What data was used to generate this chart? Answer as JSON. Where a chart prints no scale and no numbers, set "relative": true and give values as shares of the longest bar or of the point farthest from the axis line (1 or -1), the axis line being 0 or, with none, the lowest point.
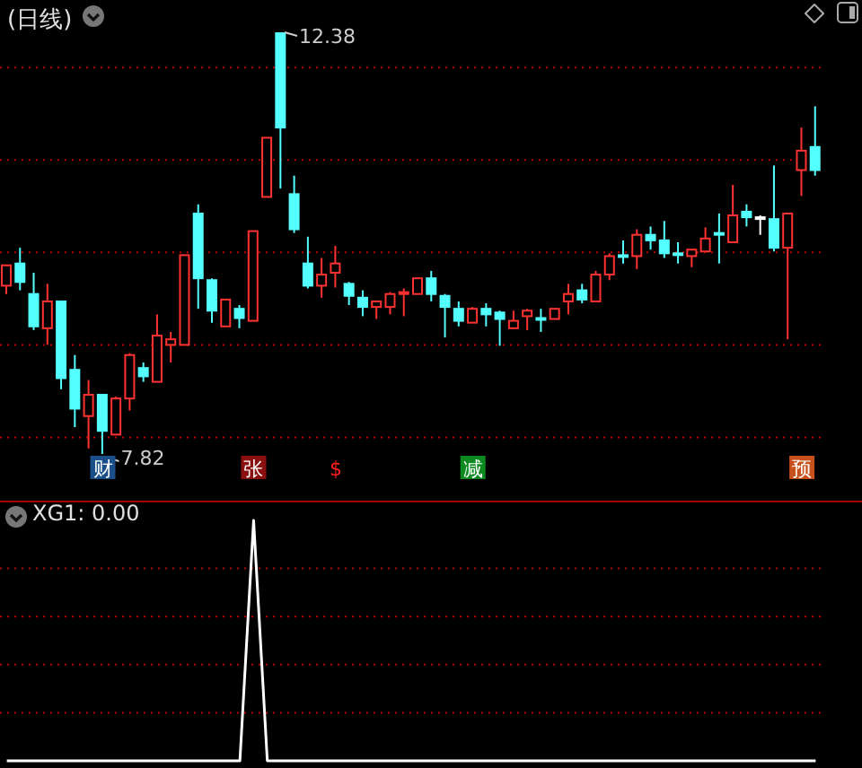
{
  "chart_data": [
    {
      "type": "candlestick",
      "title": "(日线)",
      "categories": [
        null,
        null,
        null,
        null,
        null,
        null,
        null,
        null,
        null,
        null,
        null,
        null,
        null,
        null,
        null,
        null,
        null,
        null,
        null,
        null,
        null,
        null,
        null,
        null,
        null,
        null,
        null,
        null,
        null,
        null,
        null,
        null,
        null,
        null,
        null,
        null,
        null,
        null,
        null,
        null,
        null,
        null,
        null,
        null,
        null,
        null,
        null,
        null,
        null,
        null,
        null,
        null,
        null,
        null,
        null,
        null,
        null,
        null,
        null,
        null
      ],
      "ohlc": [
        [
          9.64,
          9.86,
          9.55,
          9.86
        ],
        [
          9.88,
          10.05,
          9.59,
          9.68
        ],
        [
          9.55,
          9.78,
          9.16,
          9.2
        ],
        [
          9.18,
          9.66,
          9.0,
          9.47
        ],
        [
          9.47,
          9.47,
          8.52,
          8.64
        ],
        [
          8.73,
          8.89,
          8.11,
          8.31
        ],
        [
          8.23,
          8.62,
          7.88,
          8.46
        ],
        [
          8.46,
          8.46,
          7.82,
          8.07
        ],
        [
          8.03,
          8.44,
          8.03,
          8.42
        ],
        [
          8.42,
          8.91,
          8.29,
          8.89
        ],
        [
          8.75,
          8.81,
          8.6,
          8.66
        ],
        [
          8.6,
          9.33,
          8.6,
          9.1
        ],
        [
          9.0,
          9.14,
          8.81,
          9.06
        ],
        [
          9.0,
          9.97,
          9.0,
          9.97
        ],
        [
          10.42,
          10.52,
          9.39,
          9.72
        ],
        [
          9.7,
          9.72,
          9.24,
          9.37
        ],
        [
          9.2,
          9.49,
          9.2,
          9.49
        ],
        [
          9.39,
          9.43,
          9.18,
          9.29
        ],
        [
          9.26,
          10.23,
          9.26,
          10.23
        ],
        [
          10.6,
          11.24,
          10.6,
          11.24
        ],
        [
          12.38,
          12.38,
          10.69,
          11.35
        ],
        [
          10.63,
          10.83,
          10.21,
          10.25
        ],
        [
          9.88,
          10.17,
          9.61,
          9.64
        ],
        [
          9.64,
          9.94,
          9.51,
          9.76
        ],
        [
          9.78,
          10.07,
          9.62,
          9.88
        ],
        [
          9.66,
          9.68,
          9.43,
          9.53
        ],
        [
          9.51,
          9.59,
          9.31,
          9.41
        ],
        [
          9.41,
          9.47,
          9.28,
          9.47
        ],
        [
          9.41,
          9.57,
          9.33,
          9.55
        ],
        [
          9.55,
          9.61,
          9.31,
          9.57
        ],
        [
          9.55,
          9.72,
          9.55,
          9.72
        ],
        [
          9.72,
          9.8,
          9.47,
          9.55
        ],
        [
          9.53,
          9.55,
          9.08,
          9.41
        ],
        [
          9.39,
          9.47,
          9.2,
          9.26
        ],
        [
          9.24,
          9.41,
          9.24,
          9.39
        ],
        [
          9.39,
          9.45,
          9.2,
          9.33
        ],
        [
          9.35,
          9.37,
          8.99,
          9.28
        ],
        [
          9.18,
          9.37,
          9.18,
          9.26
        ],
        [
          9.31,
          9.39,
          9.16,
          9.37
        ],
        [
          9.29,
          9.39,
          9.14,
          9.29
        ],
        [
          9.28,
          9.39,
          9.28,
          9.39
        ],
        [
          9.47,
          9.66,
          9.33,
          9.55
        ],
        [
          9.59,
          9.66,
          9.45,
          9.49
        ],
        [
          9.47,
          9.8,
          9.47,
          9.76
        ],
        [
          9.76,
          9.99,
          9.7,
          9.96
        ],
        [
          9.97,
          10.13,
          9.88,
          9.97
        ],
        [
          9.96,
          10.25,
          9.82,
          10.19
        ],
        [
          10.19,
          10.28,
          10.03,
          10.13
        ],
        [
          10.13,
          10.34,
          9.94,
          9.99
        ],
        [
          9.99,
          10.11,
          9.88,
          9.99
        ],
        [
          9.96,
          10.03,
          9.84,
          10.03
        ],
        [
          10.01,
          10.27,
          10.01,
          10.15
        ],
        [
          10.21,
          10.42,
          9.88,
          10.21
        ],
        [
          10.11,
          10.73,
          10.11,
          10.4
        ],
        [
          10.44,
          10.52,
          10.28,
          10.38
        ],
        [
          10.38,
          10.4,
          10.19,
          10.38
        ],
        [
          10.36,
          10.94,
          10.01,
          10.05
        ],
        [
          10.05,
          10.42,
          9.06,
          10.42
        ],
        [
          10.89,
          11.35,
          10.61,
          11.1
        ],
        [
          11.14,
          11.58,
          10.83,
          10.89
        ]
      ],
      "colors": [
        "#ff3232",
        "#54ffff",
        "#54ffff",
        "#ff3232",
        "#54ffff",
        "#54ffff",
        "#ff3232",
        "#54ffff",
        "#ff3232",
        "#ff3232",
        "#54ffff",
        "#ff3232",
        "#ff3232",
        "#ff3232",
        "#54ffff",
        "#54ffff",
        "#ff3232",
        "#54ffff",
        "#ff3232",
        "#ff3232",
        "#54ffff",
        "#54ffff",
        "#54ffff",
        "#ff3232",
        "#ff3232",
        "#54ffff",
        "#54ffff",
        "#ff3232",
        "#ff3232",
        "#ff3232",
        "#ff3232",
        "#54ffff",
        "#54ffff",
        "#54ffff",
        "#ff3232",
        "#54ffff",
        "#54ffff",
        "#ff3232",
        "#ff3232",
        "#54ffff",
        "#ff3232",
        "#ff3232",
        "#54ffff",
        "#ff3232",
        "#ff3232",
        "#54ffff",
        "#ff3232",
        "#54ffff",
        "#54ffff",
        "#54ffff",
        "#ff3232",
        "#ff3232",
        "#54ffff",
        "#ff3232",
        "#54ffff",
        "#ffffff",
        "#54ffff",
        "#ff3232",
        "#ff3232",
        "#54ffff"
      ],
      "value_labels": [
        null,
        null,
        null,
        null,
        null,
        null,
        null,
        "财",
        null,
        null,
        null,
        null,
        null,
        null,
        null,
        null,
        null,
        null,
        "张",
        null,
        null,
        null,
        null,
        null,
        "$",
        null,
        null,
        null,
        null,
        null,
        null,
        null,
        null,
        null,
        "减",
        null,
        null,
        null,
        null,
        null,
        null,
        null,
        null,
        null,
        null,
        null,
        null,
        null,
        null,
        null,
        null,
        null,
        null,
        null,
        null,
        null,
        null,
        null,
        "预",
        null
      ],
      "yticks": [
        {
          "value": 8,
          "label": null
        },
        {
          "value": 9,
          "label": null
        },
        {
          "value": 10,
          "label": null
        },
        {
          "value": 11,
          "label": null
        },
        {
          "value": 12,
          "label": null
        }
      ],
      "grid": "y",
      "annotations": [
        "12.38",
        "7.82"
      ]
    },
    {
      "type": "line",
      "title": "XG1: 0.00",
      "relative": true,
      "categories": [
        null,
        null,
        null,
        null,
        null,
        null,
        null,
        null,
        null,
        null,
        null,
        null,
        null,
        null,
        null,
        null,
        null,
        null,
        null,
        null,
        null,
        null,
        null,
        null,
        null,
        null,
        null,
        null,
        null,
        null,
        null,
        null,
        null,
        null,
        null,
        null,
        null,
        null,
        null,
        null,
        null,
        null,
        null,
        null,
        null,
        null,
        null,
        null,
        null,
        null,
        null,
        null,
        null,
        null,
        null,
        null,
        null,
        null,
        null,
        null
      ],
      "series": [
        {
          "color": "#ffffff",
          "values": [
            0,
            0,
            0,
            0,
            0,
            0,
            0,
            0,
            0,
            0,
            0,
            0,
            0,
            0,
            0,
            0,
            0,
            0,
            1,
            0,
            0,
            0,
            0,
            0,
            0,
            0,
            0,
            0,
            0,
            0,
            0,
            0,
            0,
            0,
            0,
            0,
            0,
            0,
            0,
            0,
            0,
            0,
            0,
            0,
            0,
            0,
            0,
            0,
            0,
            0,
            0,
            0,
            0,
            0,
            0,
            0,
            0,
            0,
            0,
            0
          ]
        }
      ],
      "ref_lines": [
        {
          "axis": "y",
          "value": 0.2,
          "color": "#c00000",
          "line_style": "dotted"
        },
        {
          "axis": "y",
          "value": 0.4,
          "color": "#c00000",
          "line_style": "dotted"
        },
        {
          "axis": "y",
          "value": 0.6,
          "color": "#c00000",
          "line_style": "dotted"
        },
        {
          "axis": "y",
          "value": 0.8,
          "color": "#c00000",
          "line_style": "dotted"
        }
      ],
      "marker": "none",
      "line_style": "solid"
    }
  ]
}
